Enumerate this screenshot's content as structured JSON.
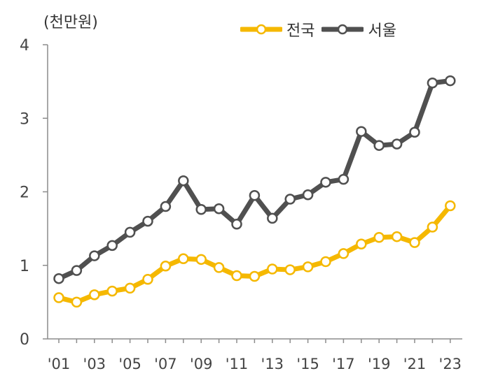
{
  "chart_data": {
    "type": "line",
    "unit_label": "(천만원)",
    "x": [
      "2001",
      "2002",
      "2003",
      "2004",
      "2005",
      "2006",
      "2007",
      "2008",
      "2009",
      "2010",
      "2011",
      "2012",
      "2013",
      "2014",
      "2015",
      "2016",
      "2017",
      "2018",
      "2019",
      "2020",
      "2021",
      "2022",
      "2023"
    ],
    "x_tick_labels": [
      "'01",
      "'03",
      "'05",
      "'07",
      "'09",
      "'11",
      "'13",
      "'15",
      "'17",
      "'19",
      "'21",
      "'23"
    ],
    "ylim": [
      0,
      4
    ],
    "y_ticks": [
      "0",
      "1",
      "2",
      "3",
      "4"
    ],
    "grid": false,
    "legend_position": "top-right",
    "series": [
      {
        "name": "전국",
        "color": "#F5B800",
        "values": [
          0.56,
          0.5,
          0.6,
          0.65,
          0.69,
          0.81,
          0.99,
          1.09,
          1.08,
          0.97,
          0.86,
          0.85,
          0.95,
          0.94,
          0.98,
          1.05,
          1.16,
          1.29,
          1.38,
          1.39,
          1.31,
          1.52,
          1.81
        ]
      },
      {
        "name": "서울",
        "color": "#505050",
        "values": [
          0.82,
          0.93,
          1.13,
          1.27,
          1.45,
          1.6,
          1.8,
          2.15,
          1.76,
          1.77,
          1.56,
          1.95,
          1.64,
          1.9,
          1.96,
          2.13,
          2.17,
          2.82,
          2.63,
          2.65,
          2.81,
          3.48,
          3.51
        ]
      }
    ]
  }
}
